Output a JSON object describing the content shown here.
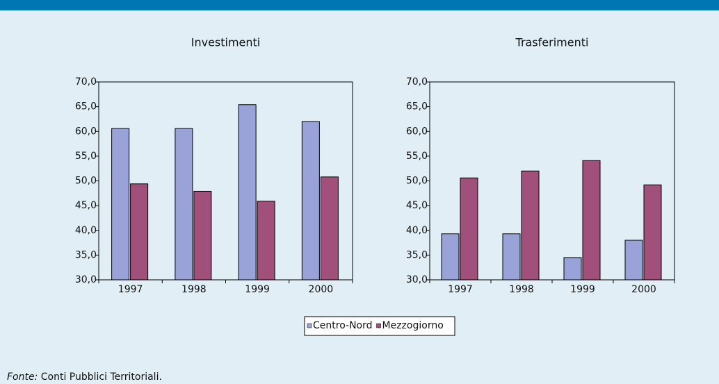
{
  "chart_data": [
    {
      "type": "bar",
      "title": "Investimenti",
      "categories": [
        "1997",
        "1998",
        "1999",
        "2000"
      ],
      "series": [
        {
          "color": "#9aa3d8",
          "values": [
            60.6,
            60.6,
            65.4,
            62.0
          ]
        },
        {
          "color": "#a0507a",
          "values": [
            49.4,
            47.9,
            45.9,
            50.8
          ]
        }
      ],
      "ylim": [
        30,
        70
      ],
      "yticks": [
        {
          "value": 30,
          "label": "30,0"
        },
        {
          "value": 35,
          "label": "35,0"
        },
        {
          "value": 40,
          "label": "40,0"
        },
        {
          "value": 45,
          "label": "45,0"
        },
        {
          "value": 50,
          "label": "50,0"
        },
        {
          "value": 55,
          "label": "55,0"
        },
        {
          "value": 60,
          "label": "60,0"
        },
        {
          "value": 65,
          "label": "65,0"
        },
        {
          "value": 70,
          "label": "70,0"
        }
      ]
    },
    {
      "type": "bar",
      "title": "Trasferimenti",
      "categories": [
        "1997",
        "1998",
        "1999",
        "2000"
      ],
      "series": [
        {
          "color": "#9aa3d8",
          "values": [
            39.3,
            39.3,
            34.5,
            38.0
          ]
        },
        {
          "color": "#a0507a",
          "values": [
            50.6,
            52.0,
            54.1,
            49.2
          ]
        }
      ],
      "ylim": [
        30,
        70
      ],
      "yticks": [
        {
          "value": 30,
          "label": "30,0"
        },
        {
          "value": 35,
          "label": "35,0"
        },
        {
          "value": 40,
          "label": "40,0"
        },
        {
          "value": 45,
          "label": "45,0"
        },
        {
          "value": 50,
          "label": "50,0"
        },
        {
          "value": 55,
          "label": "55,0"
        },
        {
          "value": 60,
          "label": "60,0"
        },
        {
          "value": 65,
          "label": "65,0"
        },
        {
          "value": 70,
          "label": "70,0"
        }
      ]
    }
  ],
  "legend": [
    {
      "name": "Centro-Nord",
      "color": "#9aa3d8"
    },
    {
      "name": "Mezzogiorno",
      "color": "#a0507a"
    }
  ],
  "source": {
    "label": "Fonte:",
    "text": " Conti Pubblici Territoriali."
  }
}
